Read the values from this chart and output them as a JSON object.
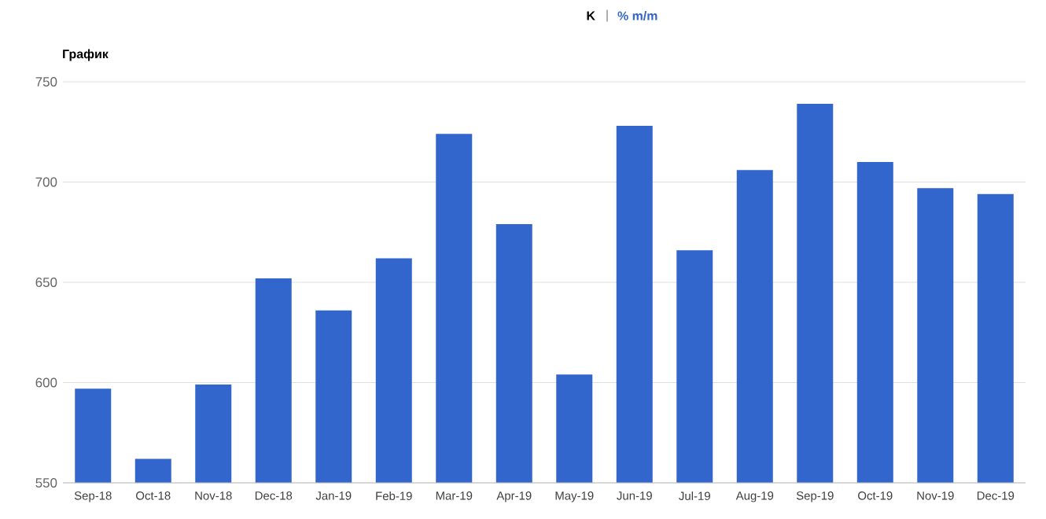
{
  "chart_data": {
    "type": "bar",
    "title": "График",
    "annotations": [
      "K",
      "|",
      "% m/m"
    ],
    "categories": [
      "Sep-18",
      "Oct-18",
      "Nov-18",
      "Dec-18",
      "Jan-19",
      "Feb-19",
      "Mar-19",
      "Apr-19",
      "May-19",
      "Jun-19",
      "Jul-19",
      "Aug-19",
      "Sep-19",
      "Oct-19",
      "Nov-19",
      "Dec-19"
    ],
    "values": [
      597,
      562,
      599,
      652,
      636,
      662,
      724,
      679,
      604,
      728,
      666,
      706,
      739,
      710,
      697,
      694
    ],
    "color": "#3366cc",
    "ylim": [
      550,
      750
    ],
    "yticks": [
      550,
      600,
      650,
      700,
      750
    ],
    "grid": "y"
  }
}
